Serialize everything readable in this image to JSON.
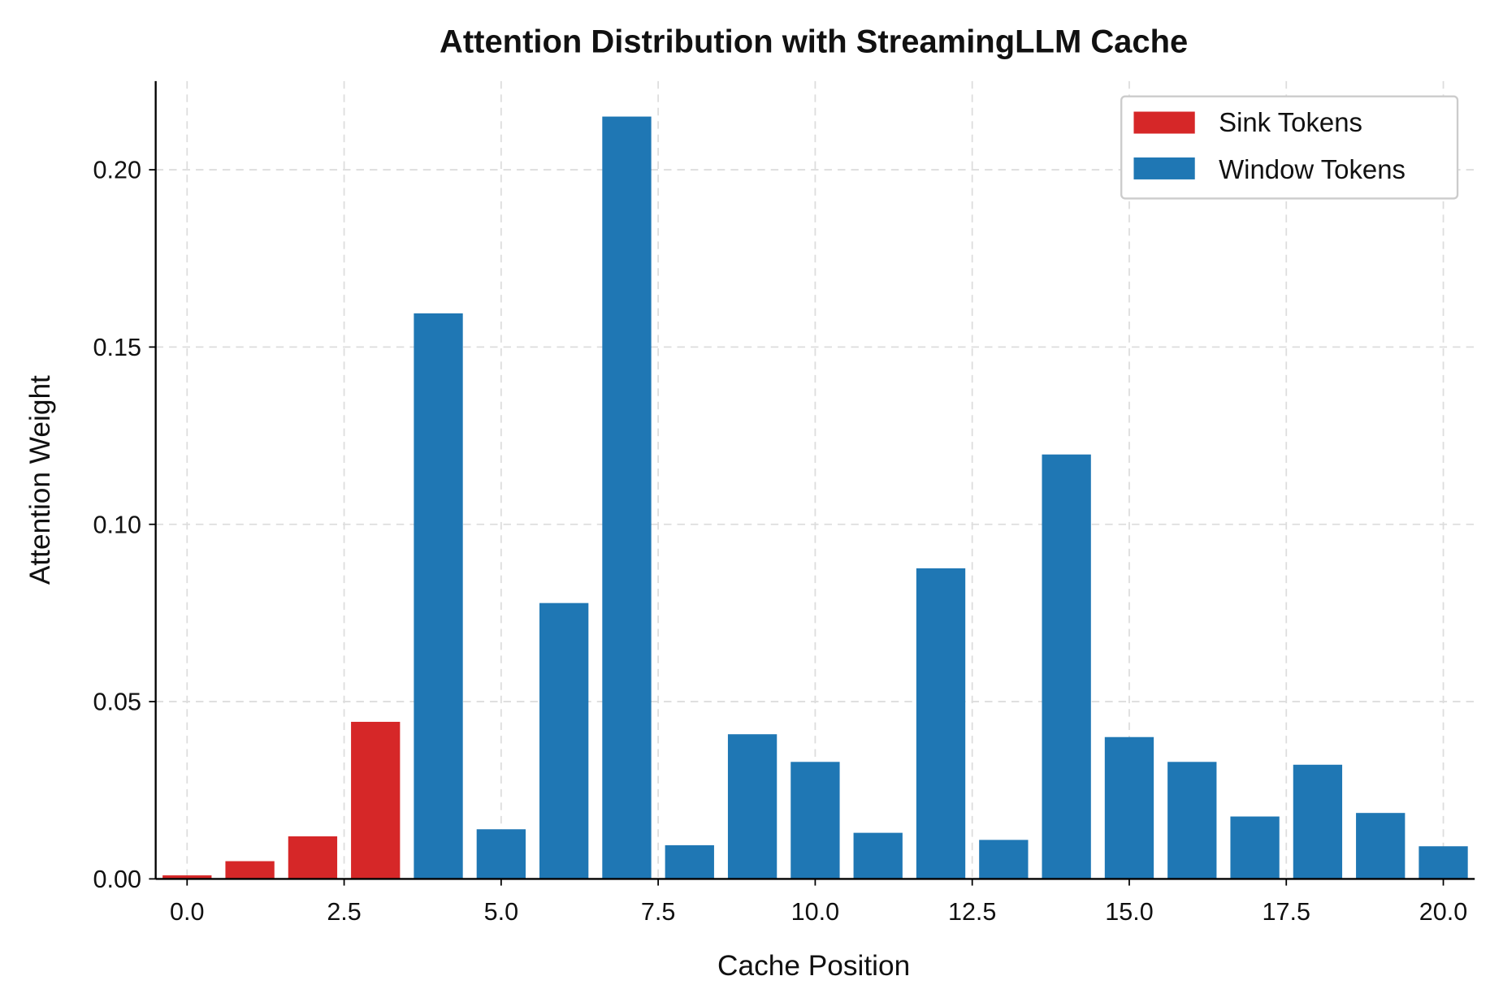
{
  "chart_data": {
    "type": "bar",
    "title": "Attention Distribution with StreamingLLM Cache",
    "xlabel": "Cache Position",
    "ylabel": "Attention Weight",
    "xlim": [
      -0.5,
      20.5
    ],
    "ylim": [
      0,
      0.225
    ],
    "xticks": [
      "0.0",
      "2.5",
      "5.0",
      "7.5",
      "10.0",
      "12.5",
      "15.0",
      "17.5",
      "20.0"
    ],
    "yticks": [
      "0.00",
      "0.05",
      "0.10",
      "0.15",
      "0.20"
    ],
    "grid": true,
    "legend_position": "top-right",
    "series": [
      {
        "name": "Sink Tokens",
        "color": "#d62728",
        "x": [
          0,
          1,
          2,
          3
        ],
        "values": [
          0.001,
          0.005,
          0.012,
          0.0443
        ]
      },
      {
        "name": "Window Tokens",
        "color": "#1f77b4",
        "x": [
          4,
          5,
          6,
          7,
          8,
          9,
          10,
          11,
          12,
          13,
          14,
          15,
          16,
          17,
          18,
          19,
          20
        ],
        "values": [
          0.1595,
          0.014,
          0.0778,
          0.215,
          0.0095,
          0.0408,
          0.033,
          0.013,
          0.0876,
          0.011,
          0.1197,
          0.04,
          0.033,
          0.0176,
          0.0322,
          0.0186,
          0.0092
        ]
      }
    ]
  }
}
